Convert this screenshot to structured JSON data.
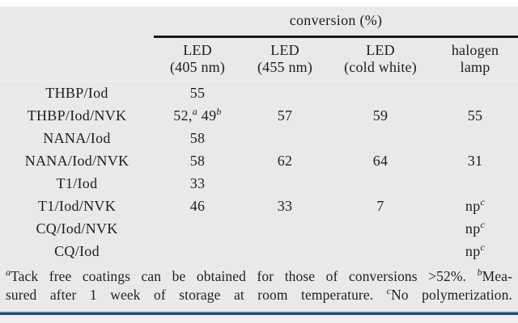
{
  "page": {
    "background_color": "#e9e9e9",
    "accent_rule_color": "#2a4f86"
  },
  "table": {
    "spanner_header": "conversion (%)",
    "columns": [
      {
        "line1": "LED",
        "line2": "(405 nm)"
      },
      {
        "line1": "LED",
        "line2": "(455 nm)"
      },
      {
        "line1": "LED",
        "line2": "(cold white)"
      },
      {
        "line1": "halogen",
        "line2": "lamp"
      }
    ],
    "rows": [
      {
        "label": "THBP/Iod",
        "values": [
          "55",
          "",
          "",
          ""
        ]
      },
      {
        "label": "THBP/Iod/NVK",
        "values": [
          "52,^a 49^b",
          "57",
          "59",
          "55"
        ]
      },
      {
        "label": "NANA/Iod",
        "values": [
          "58",
          "",
          "",
          ""
        ]
      },
      {
        "label": "NANA/Iod/NVK",
        "values": [
          "58",
          "62",
          "64",
          "31"
        ]
      },
      {
        "label": "T1/Iod",
        "values": [
          "33",
          "",
          "",
          ""
        ]
      },
      {
        "label": "T1/Iod/NVK",
        "values": [
          "46",
          "33",
          "7",
          "np^c"
        ]
      },
      {
        "label": "CQ/Iod/NVK",
        "values": [
          "",
          "",
          "",
          "np^c"
        ]
      },
      {
        "label": "CQ/Iod",
        "values": [
          "",
          "",
          "",
          "np^c"
        ]
      }
    ]
  },
  "footnotes": {
    "line1": "^aTack free coatings can be obtained for those of conversions >52%. ^bMea-",
    "line2": "sured after 1 week of storage at room temperature. ^cNo polymerization."
  }
}
